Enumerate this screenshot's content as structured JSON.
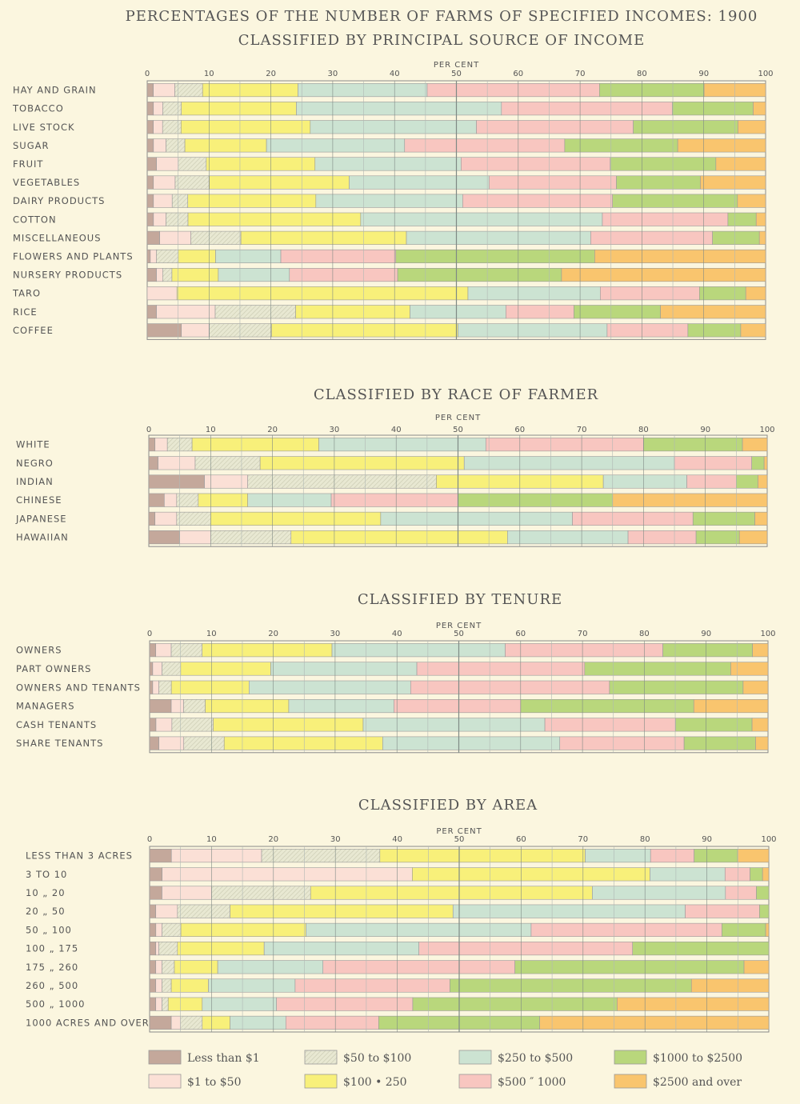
{
  "title": "PERCENTAGES OF THE NUMBER OF FARMS OF SPECIFIED INCOMES: 1900",
  "axis_label": "PER CENT",
  "ticks": [
    "0",
    "10",
    "20",
    "30",
    "40",
    "50",
    "60",
    "70",
    "80",
    "90",
    "100"
  ],
  "categories_legend": [
    {
      "label": "Less than $1",
      "color": "#c4a89b"
    },
    {
      "label": "$1 to $50",
      "color": "#fbe0d6"
    },
    {
      "label": "$50 to $100",
      "color": "#e8e8d2"
    },
    {
      "label": "$100  •  250",
      "color": "#f8f07a"
    },
    {
      "label": "$250 to $500",
      "color": "#cce3d2"
    },
    {
      "label": "$500  ″  1000",
      "color": "#f8c6c0"
    },
    {
      "label": "$1000 to $2500",
      "color": "#b9d77c"
    },
    {
      "label": "$2500 and over",
      "color": "#f9c56e"
    }
  ],
  "chart_data": [
    {
      "type": "bar",
      "stacked": true,
      "orientation": "horizontal",
      "title": "CLASSIFIED BY PRINCIPAL SOURCE OF INCOME",
      "xlabel": "PER CENT",
      "xlim": [
        0,
        100
      ],
      "categories": [
        "HAY AND GRAIN",
        "TOBACCO",
        "LIVE STOCK",
        "SUGAR",
        "FRUIT",
        "VEGETABLES",
        "DAIRY PRODUCTS",
        "COTTON",
        "MISCELLANEOUS",
        "FLOWERS AND PLANTS",
        "NURSERY PRODUCTS",
        "TARO",
        "RICE",
        "COFFEE"
      ],
      "values": [
        [
          1,
          3.5,
          4.5,
          15.5,
          21,
          28,
          17,
          10
        ],
        [
          1,
          1.5,
          3,
          18.5,
          33,
          27.5,
          13,
          2
        ],
        [
          1,
          1.5,
          3,
          21,
          27,
          25.5,
          17,
          4.5
        ],
        [
          1,
          2,
          3,
          13,
          22,
          25.5,
          18,
          14
        ],
        [
          1.5,
          3.5,
          4.5,
          17.5,
          23.5,
          24,
          17,
          8
        ],
        [
          1,
          3.5,
          5.5,
          22.5,
          22.5,
          20.5,
          13.5,
          10.5
        ],
        [
          1,
          3,
          2.5,
          20.5,
          23.5,
          24,
          20,
          4.5
        ],
        [
          1,
          2,
          3.5,
          27.5,
          38.5,
          20,
          4.5,
          1.5
        ],
        [
          2,
          5,
          8,
          26.5,
          29.5,
          19.5,
          7.5,
          1
        ],
        [
          0.5,
          1,
          3.5,
          6,
          10.5,
          18.5,
          32,
          27.5
        ],
        [
          1.5,
          1,
          1.5,
          7.5,
          11.5,
          17.5,
          26.5,
          33
        ],
        [
          0,
          4.5,
          0,
          44,
          20,
          15,
          7,
          3
        ],
        [
          1.5,
          9.5,
          13,
          18.5,
          15.5,
          11,
          14,
          17
        ],
        [
          5.5,
          4.5,
          10,
          30,
          24,
          13,
          8.5,
          4
        ]
      ]
    },
    {
      "type": "bar",
      "stacked": true,
      "orientation": "horizontal",
      "title": "CLASSIFIED BY RACE OF FARMER",
      "xlabel": "PER CENT",
      "xlim": [
        0,
        100
      ],
      "categories": [
        "WHITE",
        "NEGRO",
        "INDIAN",
        "CHINESE",
        "JAPANESE",
        "HAWAIIAN"
      ],
      "values": [
        [
          1,
          2,
          4,
          20.5,
          27,
          25.5,
          16,
          4
        ],
        [
          1.5,
          6,
          10.5,
          33,
          34,
          12.5,
          2,
          0.5
        ],
        [
          9,
          7,
          30.5,
          27,
          13.5,
          8,
          3.5,
          1.5
        ],
        [
          2.5,
          2,
          3.5,
          8,
          13.5,
          20.5,
          25,
          25
        ],
        [
          1,
          3.5,
          5.5,
          27.5,
          31,
          19.5,
          10,
          2
        ],
        [
          5,
          5,
          13,
          35,
          19.5,
          11,
          7,
          4.5
        ]
      ]
    },
    {
      "type": "bar",
      "stacked": true,
      "orientation": "horizontal",
      "title": "CLASSIFIED BY TENURE",
      "xlabel": "PER CENT",
      "xlim": [
        0,
        100
      ],
      "categories": [
        "OWNERS",
        "PART OWNERS",
        "OWNERS AND TENANTS",
        "MANAGERS",
        "CASH TENANTS",
        "SHARE TENANTS"
      ],
      "values": [
        [
          1,
          2.5,
          5,
          21,
          28,
          25.5,
          14.5,
          2.5
        ],
        [
          0.5,
          1.5,
          3,
          14.5,
          23.5,
          27,
          23.5,
          6
        ],
        [
          0.5,
          1,
          2,
          12.5,
          26,
          32,
          21.5,
          4
        ],
        [
          3.5,
          2,
          3.5,
          13.5,
          17,
          20.5,
          28,
          12
        ],
        [
          1,
          2.5,
          6.5,
          23.5,
          28.5,
          20.5,
          12,
          2.5
        ],
        [
          1.5,
          4,
          6.5,
          25.5,
          28.5,
          20,
          11.5,
          2
        ]
      ]
    },
    {
      "type": "bar",
      "stacked": true,
      "orientation": "horizontal",
      "title": "CLASSIFIED BY AREA",
      "xlabel": "PER CENT",
      "xlim": [
        0,
        100
      ],
      "categories": [
        "LESS THAN  3 ACRES",
        "3  TO  10",
        "10  „  20",
        "20  „  50",
        "50  „  100",
        "100  „  175",
        "175  „  260",
        "260  „  500",
        "500  „  1000",
        "1000 ACRES AND OVER"
      ],
      "values": [
        [
          3.5,
          14.5,
          19,
          33,
          10.5,
          7,
          7,
          5
        ],
        [
          2,
          40,
          0,
          38,
          12,
          4,
          2,
          1
        ],
        [
          2,
          8,
          16,
          45.5,
          21.5,
          5,
          2,
          0
        ],
        [
          1,
          3.5,
          8.5,
          36,
          37.5,
          12,
          1.5,
          0
        ],
        [
          1,
          1,
          3,
          20,
          36,
          30.5,
          7,
          0.5
        ],
        [
          1,
          0.5,
          3,
          14,
          25,
          34.5,
          22,
          0
        ],
        [
          1,
          1,
          2,
          7,
          17,
          31,
          37,
          4
        ],
        [
          1,
          1,
          1.5,
          6,
          14,
          25,
          39,
          12.5
        ],
        [
          1,
          1,
          1,
          5.5,
          12,
          22,
          33,
          24.5
        ],
        [
          3.5,
          1.5,
          3.5,
          4.5,
          9,
          15,
          26,
          37
        ]
      ]
    }
  ]
}
